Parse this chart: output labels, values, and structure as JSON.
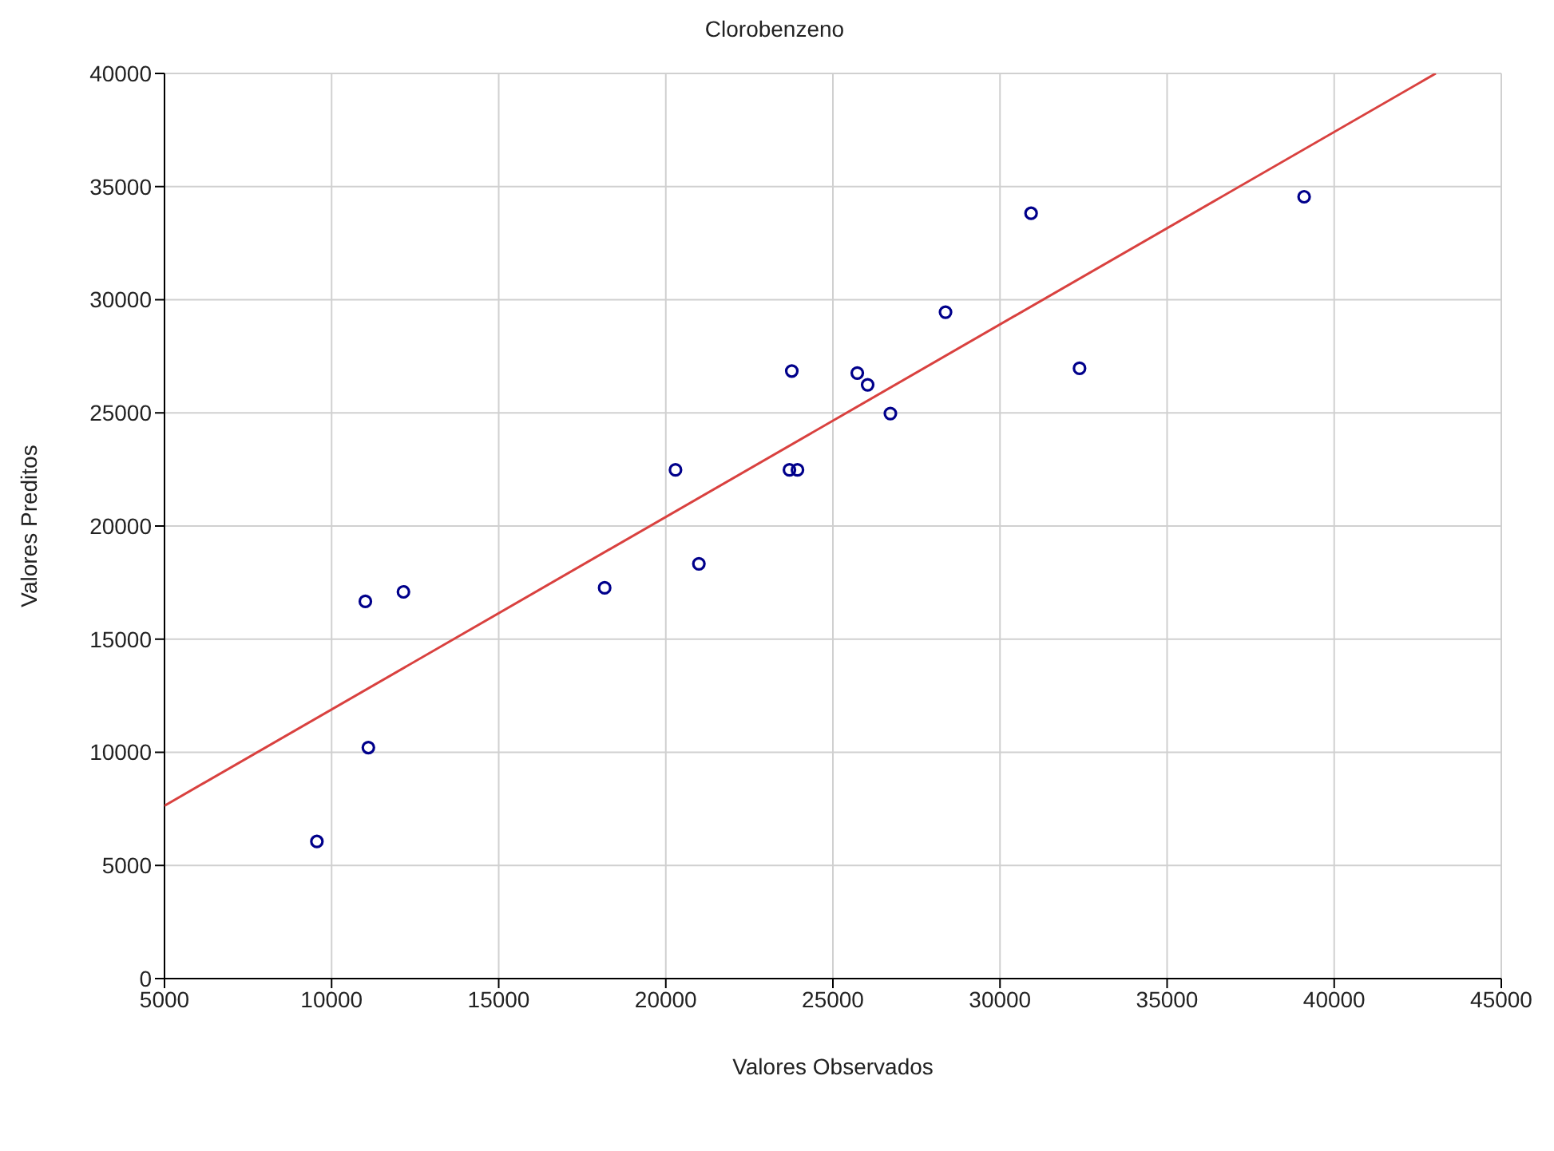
{
  "chart_data": {
    "type": "scatter",
    "title": "Clorobenzeno",
    "xlabel": "Valores Observados",
    "ylabel": "Valores Preditos",
    "xlim": [
      5000,
      45000
    ],
    "xticks": [
      5000,
      10000,
      15000,
      20000,
      25000,
      30000,
      35000,
      40000,
      45000
    ],
    "ylim": [
      0,
      40000
    ],
    "yticks": [
      0,
      5000,
      10000,
      15000,
      20000,
      25000,
      30000,
      35000,
      40000
    ],
    "grid": true,
    "series": [
      {
        "marker": "circle",
        "color": "#00008b",
        "x": [
          9560,
          11010,
          12150,
          11100,
          18170,
          20290,
          20990,
          23770,
          23700,
          23940,
          25730,
          26040,
          26720,
          28370,
          30930,
          32380,
          39100
        ],
        "values": [
          6060,
          16670,
          17090,
          10210,
          17270,
          22480,
          18330,
          26850,
          22480,
          22480,
          26760,
          26240,
          24970,
          29450,
          33820,
          26970,
          34550
        ]
      },
      {
        "type": "line",
        "marker": "none",
        "color": "#d9413f",
        "line_style": "solid",
        "x": [
          5000,
          43040
        ],
        "values": [
          7640,
          40000
        ]
      }
    ]
  }
}
